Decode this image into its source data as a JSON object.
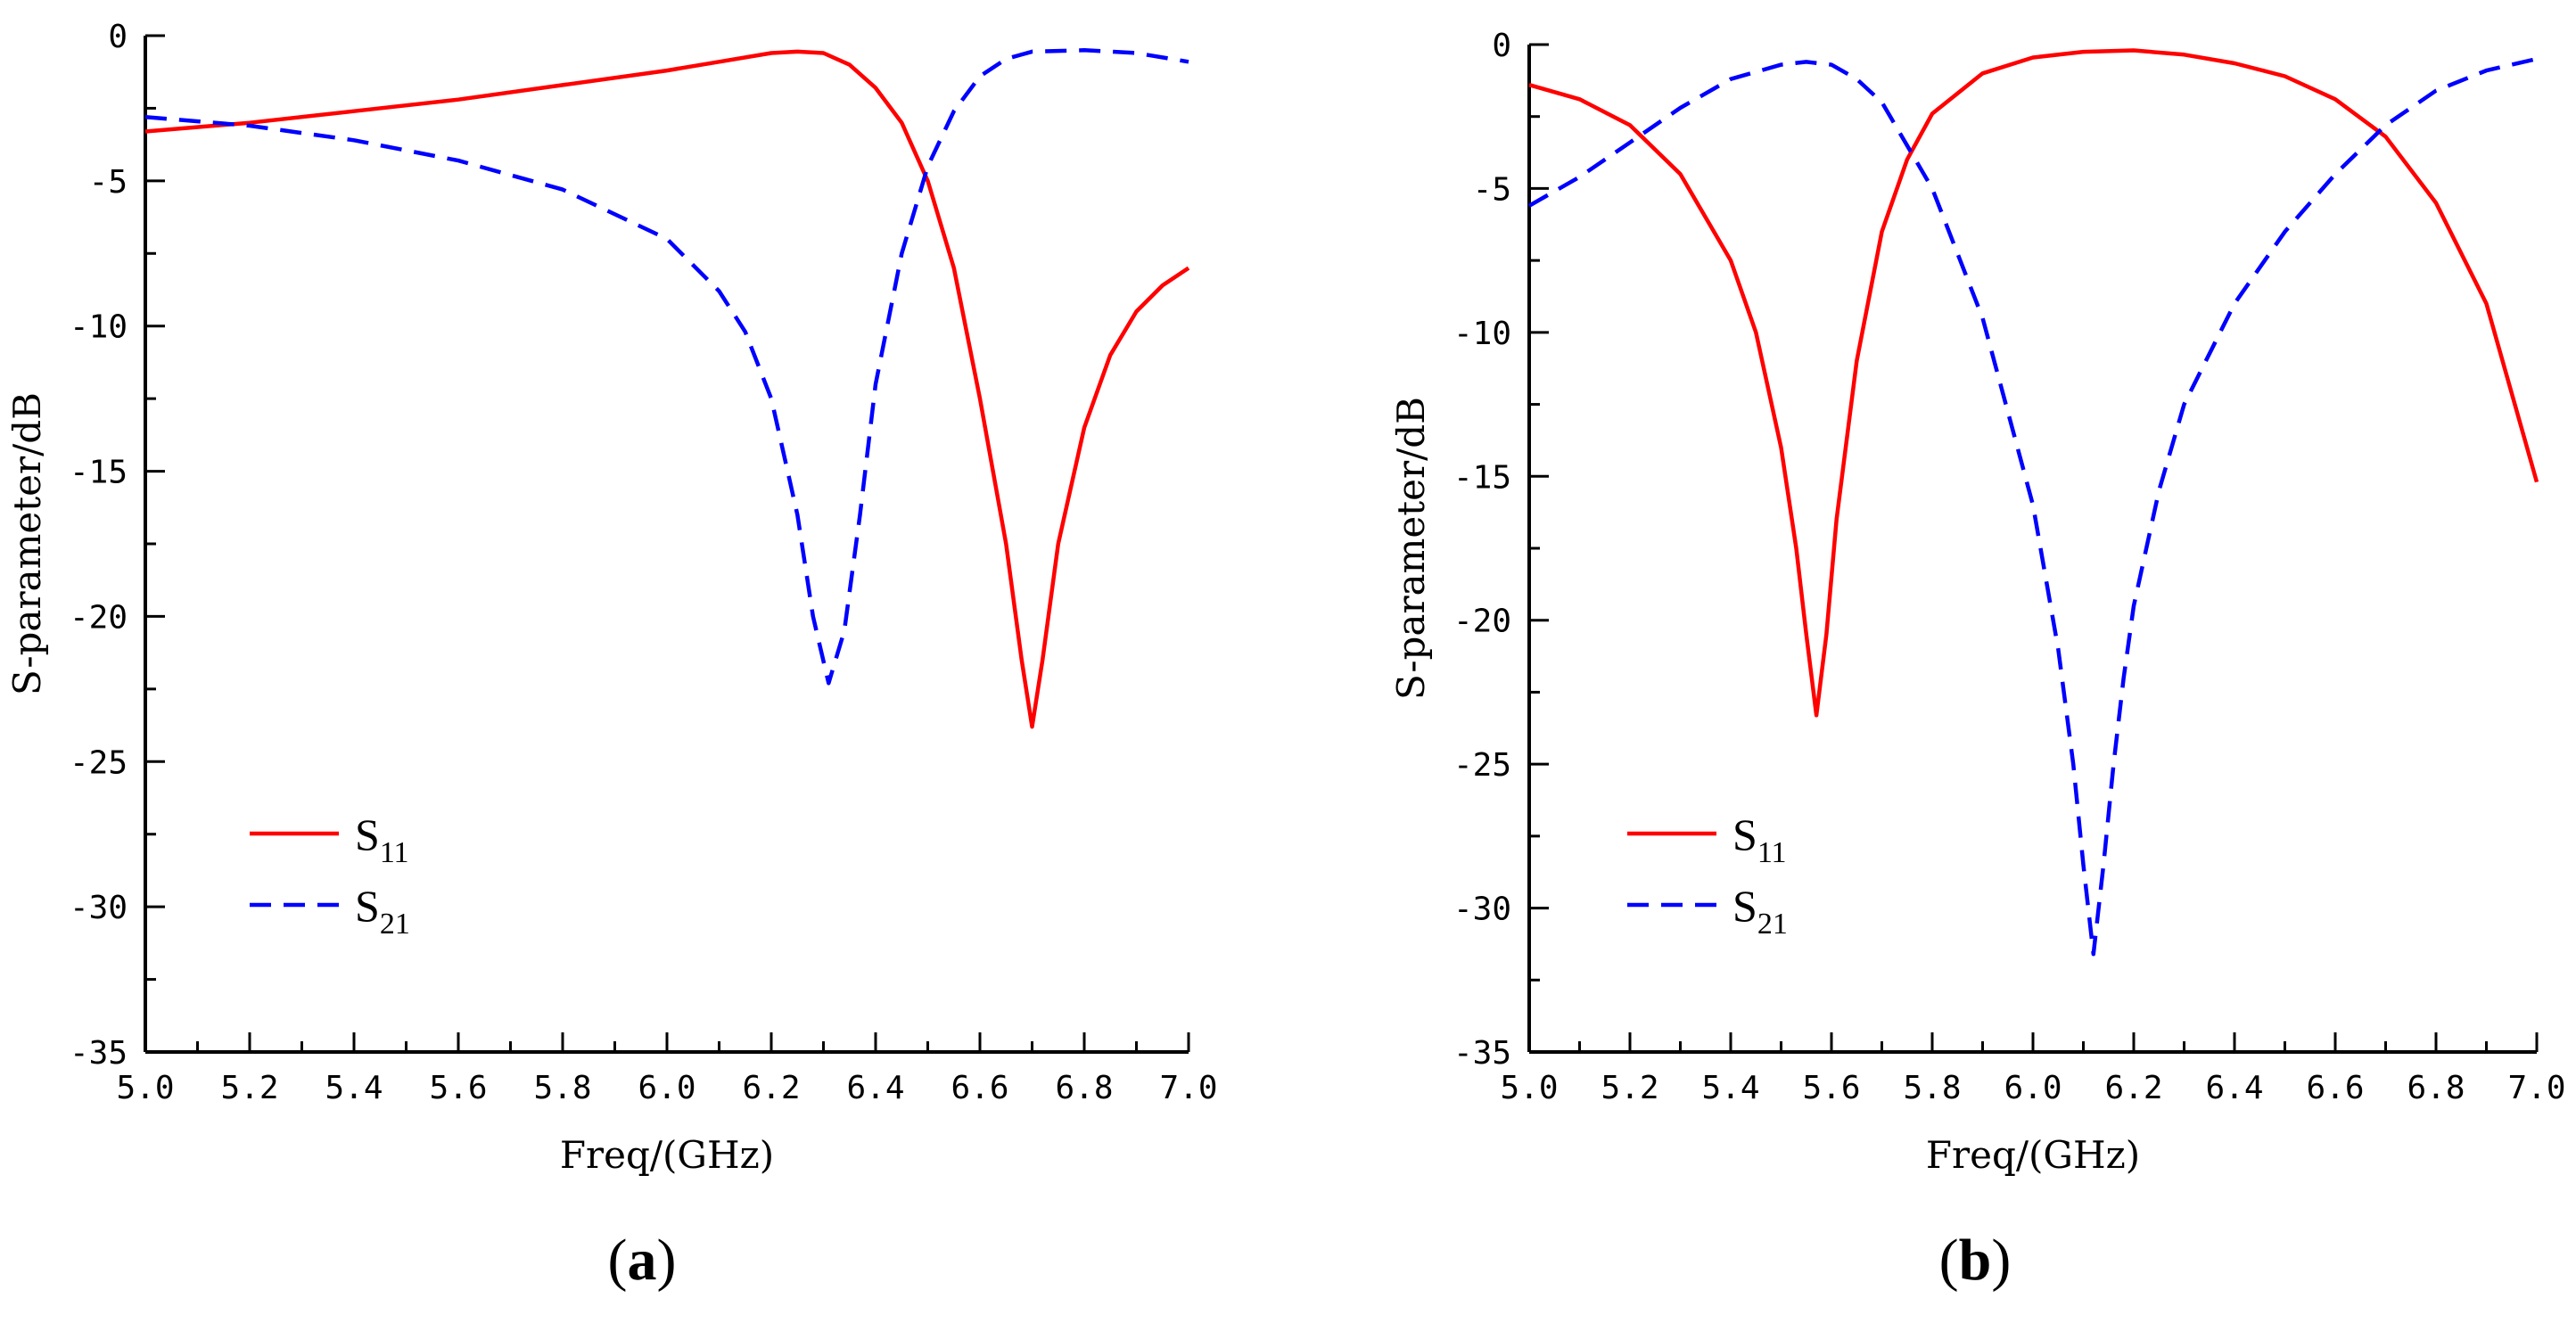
{
  "figure": {
    "colors": {
      "s11": "#ff0000",
      "s21": "#0000ff",
      "axis": "#000000"
    }
  },
  "chart_data": [
    {
      "type": "line",
      "panel_label": {
        "open": "(",
        "letter": "a",
        "close": ")"
      },
      "xlabel": "Freq/(GHz)",
      "ylabel": "S-parameter/dB",
      "xlim": [
        5.0,
        7.0
      ],
      "ylim": [
        -35,
        0
      ],
      "xticks": [
        "5.0",
        "5.2",
        "5.4",
        "5.6",
        "5.8",
        "6.0",
        "6.2",
        "6.4",
        "6.6",
        "6.8",
        "7.0"
      ],
      "yticks": [
        "0",
        "-5",
        "-10",
        "-15",
        "-20",
        "-25",
        "-30",
        "-35"
      ],
      "legend_position": "bottom-left",
      "series": [
        {
          "name": "S11",
          "base": "S",
          "sub": "11",
          "style": "solid",
          "x": [
            5.0,
            5.2,
            5.4,
            5.6,
            5.8,
            6.0,
            6.1,
            6.2,
            6.25,
            6.3,
            6.35,
            6.4,
            6.45,
            6.5,
            6.55,
            6.6,
            6.65,
            6.68,
            6.7,
            6.72,
            6.75,
            6.8,
            6.85,
            6.9,
            6.95,
            7.0
          ],
          "y": [
            -3.3,
            -3.0,
            -2.6,
            -2.2,
            -1.7,
            -1.2,
            -0.9,
            -0.6,
            -0.55,
            -0.6,
            -1.0,
            -1.8,
            -3.0,
            -5.0,
            -8.0,
            -12.5,
            -17.5,
            -21.5,
            -23.8,
            -21.5,
            -17.5,
            -13.5,
            -11.0,
            -9.5,
            -8.6,
            -8.0
          ]
        },
        {
          "name": "S21",
          "base": "S",
          "sub": "21",
          "style": "dashed",
          "x": [
            5.0,
            5.2,
            5.4,
            5.6,
            5.8,
            6.0,
            6.1,
            6.15,
            6.2,
            6.25,
            6.28,
            6.31,
            6.34,
            6.37,
            6.4,
            6.45,
            6.5,
            6.55,
            6.6,
            6.65,
            6.7,
            6.8,
            6.9,
            7.0
          ],
          "y": [
            -2.8,
            -3.1,
            -3.6,
            -4.3,
            -5.3,
            -7.0,
            -8.8,
            -10.2,
            -12.5,
            -16.5,
            -20.0,
            -22.3,
            -20.5,
            -16.5,
            -12.0,
            -7.5,
            -4.5,
            -2.6,
            -1.4,
            -0.8,
            -0.55,
            -0.5,
            -0.6,
            -0.9
          ]
        }
      ]
    },
    {
      "type": "line",
      "panel_label": {
        "open": "(",
        "letter": "b",
        "close": ")"
      },
      "xlabel": "Freq/(GHz)",
      "ylabel": "S-parameter/dB",
      "xlim": [
        5.0,
        7.0
      ],
      "ylim": [
        -35,
        0
      ],
      "xticks": [
        "5.0",
        "5.2",
        "5.4",
        "5.6",
        "5.8",
        "6.0",
        "6.2",
        "6.4",
        "6.6",
        "6.8",
        "7.0"
      ],
      "yticks": [
        "0",
        "-5",
        "-10",
        "-15",
        "-20",
        "-25",
        "-30",
        "-35"
      ],
      "legend_position": "bottom-left",
      "series": [
        {
          "name": "S11",
          "base": "S",
          "sub": "11",
          "style": "solid",
          "x": [
            5.0,
            5.1,
            5.2,
            5.3,
            5.4,
            5.45,
            5.5,
            5.53,
            5.55,
            5.57,
            5.59,
            5.61,
            5.65,
            5.7,
            5.75,
            5.8,
            5.9,
            6.0,
            6.1,
            6.2,
            6.3,
            6.4,
            6.5,
            6.6,
            6.7,
            6.8,
            6.9,
            7.0
          ],
          "y": [
            -1.4,
            -1.9,
            -2.8,
            -4.5,
            -7.5,
            -10.0,
            -14.0,
            -17.5,
            -20.5,
            -23.3,
            -20.5,
            -16.5,
            -11.0,
            -6.5,
            -4.0,
            -2.4,
            -1.0,
            -0.45,
            -0.25,
            -0.2,
            -0.35,
            -0.65,
            -1.1,
            -1.9,
            -3.2,
            -5.5,
            -9.0,
            -15.2
          ]
        },
        {
          "name": "S21",
          "base": "S",
          "sub": "21",
          "style": "dashed",
          "x": [
            5.0,
            5.1,
            5.2,
            5.3,
            5.4,
            5.5,
            5.55,
            5.6,
            5.65,
            5.7,
            5.8,
            5.9,
            6.0,
            6.05,
            6.08,
            6.1,
            6.12,
            6.14,
            6.16,
            6.18,
            6.2,
            6.25,
            6.3,
            6.4,
            6.5,
            6.6,
            6.7,
            6.8,
            6.9,
            7.0
          ],
          "y": [
            -5.6,
            -4.6,
            -3.4,
            -2.2,
            -1.2,
            -0.7,
            -0.6,
            -0.7,
            -1.2,
            -2.0,
            -5.0,
            -9.5,
            -16.0,
            -21.0,
            -25.0,
            -28.5,
            -31.6,
            -28.5,
            -25.0,
            -22.0,
            -19.5,
            -15.5,
            -12.5,
            -9.0,
            -6.5,
            -4.5,
            -2.8,
            -1.6,
            -0.9,
            -0.5
          ]
        }
      ]
    }
  ]
}
